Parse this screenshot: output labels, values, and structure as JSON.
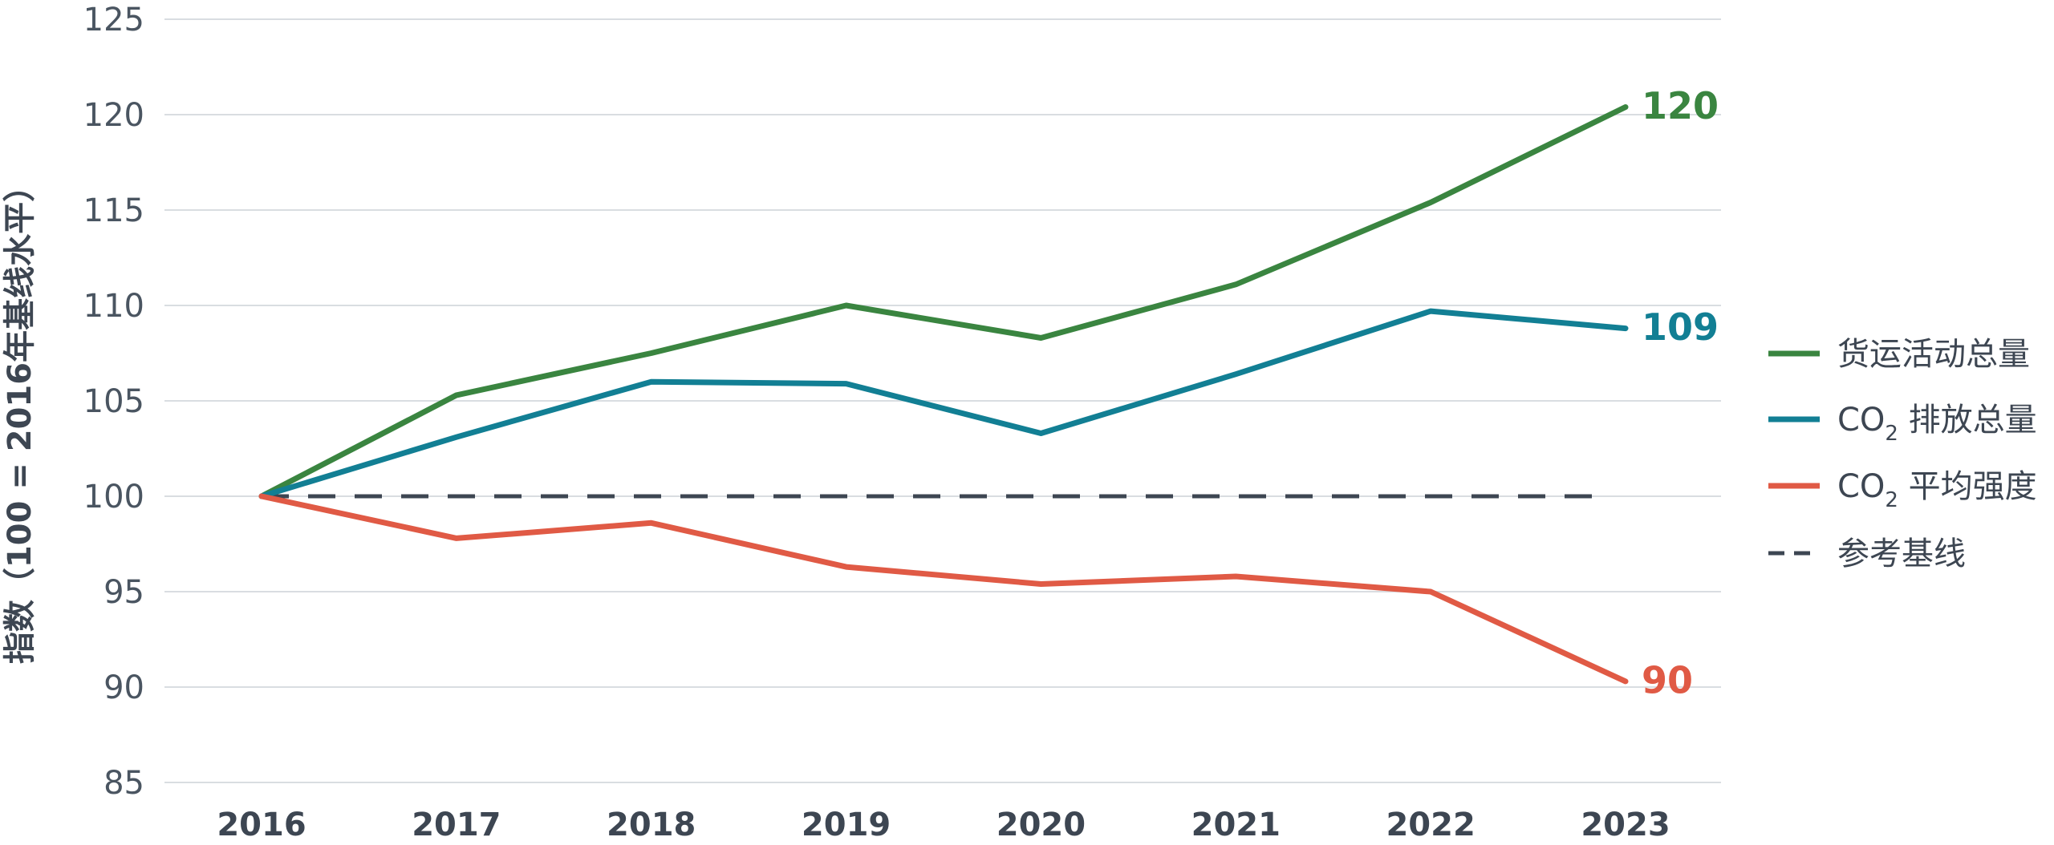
{
  "chart_data": {
    "type": "line",
    "ylabel": "指数（100 = 2016年基线水平）",
    "xlabel": "",
    "ylim": [
      85,
      125
    ],
    "yticks": [
      85,
      90,
      95,
      100,
      105,
      110,
      115,
      120,
      125
    ],
    "x": [
      "2016",
      "2017",
      "2018",
      "2019",
      "2020",
      "2021",
      "2022",
      "2023"
    ],
    "grid": true,
    "legend_position": "right",
    "series": [
      {
        "name": "货运活动总量",
        "color": "#3a8540",
        "values": [
          100,
          105.3,
          107.5,
          110,
          108.3,
          111.1,
          115.4,
          120.4
        ],
        "end_label": "120"
      },
      {
        "name": "CO₂ 排放总量",
        "name_main": "CO",
        "name_sub": "2",
        "name_rest": " 排放总量",
        "color": "#127f94",
        "values": [
          100,
          103.1,
          106,
          105.9,
          103.3,
          106.4,
          109.7,
          108.8
        ],
        "end_label": "109"
      },
      {
        "name": "CO₂ 平均强度",
        "name_main": "CO",
        "name_sub": "2",
        "name_rest": " 平均强度",
        "color": "#e05a45",
        "values": [
          100,
          97.8,
          98.6,
          96.3,
          95.4,
          95.8,
          95,
          90.3
        ],
        "end_label": "90"
      },
      {
        "name": "参考基线",
        "color": "#3d4652",
        "dashed": true,
        "values": [
          100,
          100,
          100,
          100,
          100,
          100,
          100,
          100
        ]
      }
    ]
  }
}
